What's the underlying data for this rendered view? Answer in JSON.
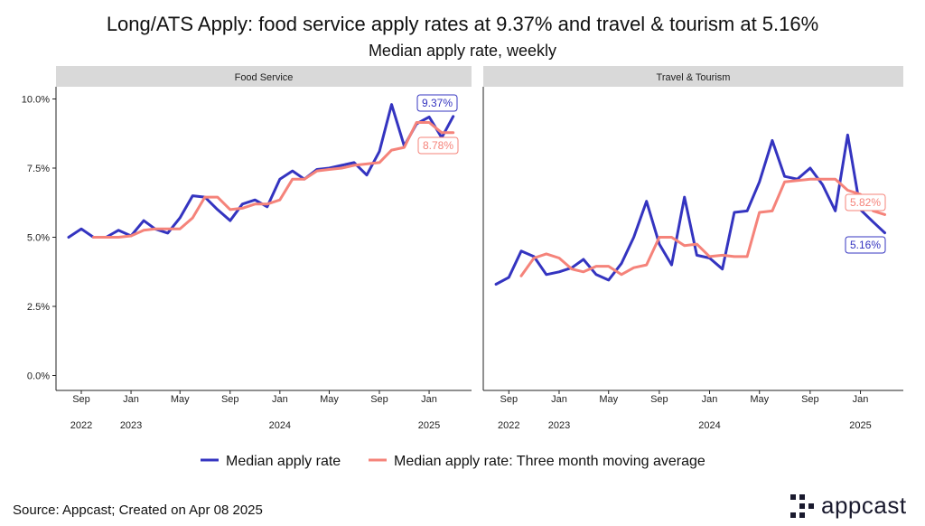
{
  "title": "Long/ATS Apply: food service apply rates at 9.37% and travel & tourism at 5.16%",
  "subtitle": "Median apply rate, weekly",
  "source": "Source: Appcast; Created on Apr 08 2025",
  "logo_text": "appcast",
  "colors": {
    "raw": "#3434c0",
    "ma": "#f5837a",
    "strip": "#d9d9d9"
  },
  "legend": [
    {
      "label": "Median apply rate",
      "color": "#3434c0"
    },
    {
      "label": "Median apply rate: Three month moving average",
      "color": "#f5837a"
    }
  ],
  "chart_data": [
    {
      "type": "line",
      "panel_title": "Food Service",
      "ylim": [
        0,
        10
      ],
      "yticks": [
        0,
        2.5,
        5,
        7.5,
        10
      ],
      "ytick_labels": [
        "0.0%",
        "2.5%",
        "5.0%",
        "7.5%",
        "10.0%"
      ],
      "xlim": [
        "2022-07-01",
        "2025-04-15"
      ],
      "xticks": [
        {
          "date": "2022-09-01",
          "month": "Sep",
          "year": "2022"
        },
        {
          "date": "2023-01-01",
          "month": "Jan",
          "year": "2023"
        },
        {
          "date": "2023-05-01",
          "month": "May",
          "year": ""
        },
        {
          "date": "2023-09-01",
          "month": "Sep",
          "year": ""
        },
        {
          "date": "2024-01-01",
          "month": "Jan",
          "year": "2024"
        },
        {
          "date": "2024-05-01",
          "month": "May",
          "year": ""
        },
        {
          "date": "2024-09-01",
          "month": "Sep",
          "year": ""
        },
        {
          "date": "2025-01-01",
          "month": "Jan",
          "year": "2025"
        }
      ],
      "series": [
        {
          "name": "Median apply rate",
          "x": [
            "2022-08-01",
            "2022-09-01",
            "2022-10-01",
            "2022-11-01",
            "2022-12-01",
            "2023-01-01",
            "2023-02-01",
            "2023-03-01",
            "2023-04-01",
            "2023-05-01",
            "2023-06-01",
            "2023-07-01",
            "2023-08-01",
            "2023-09-01",
            "2023-10-01",
            "2023-11-01",
            "2023-12-01",
            "2024-01-01",
            "2024-02-01",
            "2024-03-01",
            "2024-04-01",
            "2024-05-01",
            "2024-06-01",
            "2024-07-01",
            "2024-08-01",
            "2024-09-01",
            "2024-10-01",
            "2024-11-01",
            "2024-12-01",
            "2025-01-01",
            "2025-02-01",
            "2025-03-01"
          ],
          "values": [
            5.0,
            5.3,
            5.0,
            5.0,
            5.25,
            5.05,
            5.6,
            5.3,
            5.15,
            5.7,
            6.5,
            6.45,
            6.0,
            5.6,
            6.2,
            6.35,
            6.1,
            7.1,
            7.4,
            7.1,
            7.45,
            7.5,
            7.6,
            7.7,
            7.25,
            8.1,
            9.8,
            8.3,
            9.1,
            9.35,
            8.6,
            9.37
          ]
        },
        {
          "name": "Median apply rate: Three month moving average",
          "x": [
            "2022-10-01",
            "2022-11-01",
            "2022-12-01",
            "2023-01-01",
            "2023-02-01",
            "2023-03-01",
            "2023-04-01",
            "2023-05-01",
            "2023-06-01",
            "2023-07-01",
            "2023-08-01",
            "2023-09-01",
            "2023-10-01",
            "2023-11-01",
            "2023-12-01",
            "2024-01-01",
            "2024-02-01",
            "2024-03-01",
            "2024-04-01",
            "2024-05-01",
            "2024-06-01",
            "2024-07-01",
            "2024-08-01",
            "2024-09-01",
            "2024-10-01",
            "2024-11-01",
            "2024-12-01",
            "2025-01-01",
            "2025-02-01",
            "2025-03-01"
          ],
          "values": [
            5.0,
            5.0,
            5.0,
            5.05,
            5.25,
            5.3,
            5.3,
            5.3,
            5.7,
            6.45,
            6.45,
            6.0,
            6.05,
            6.2,
            6.2,
            6.35,
            7.1,
            7.1,
            7.4,
            7.45,
            7.5,
            7.6,
            7.65,
            7.7,
            8.15,
            8.25,
            9.15,
            9.15,
            8.78,
            8.78
          ]
        }
      ],
      "annotations": [
        {
          "text": "9.37%",
          "series": 0
        },
        {
          "text": "8.78%",
          "series": 1
        }
      ]
    },
    {
      "type": "line",
      "panel_title": "Travel & Tourism",
      "ylim": [
        0,
        10
      ],
      "xlim": [
        "2022-07-01",
        "2025-04-15"
      ],
      "xticks": [
        {
          "date": "2022-09-01",
          "month": "Sep",
          "year": "2022"
        },
        {
          "date": "2023-01-01",
          "month": "Jan",
          "year": "2023"
        },
        {
          "date": "2023-05-01",
          "month": "May",
          "year": ""
        },
        {
          "date": "2023-09-01",
          "month": "Sep",
          "year": ""
        },
        {
          "date": "2024-01-01",
          "month": "Jan",
          "year": "2024"
        },
        {
          "date": "2024-05-01",
          "month": "May",
          "year": ""
        },
        {
          "date": "2024-09-01",
          "month": "Sep",
          "year": ""
        },
        {
          "date": "2025-01-01",
          "month": "Jan",
          "year": "2025"
        }
      ],
      "series": [
        {
          "name": "Median apply rate",
          "x": [
            "2022-08-01",
            "2022-09-01",
            "2022-10-01",
            "2022-11-01",
            "2022-12-01",
            "2023-01-01",
            "2023-02-01",
            "2023-03-01",
            "2023-04-01",
            "2023-05-01",
            "2023-06-01",
            "2023-07-01",
            "2023-08-01",
            "2023-09-01",
            "2023-10-01",
            "2023-11-01",
            "2023-12-01",
            "2024-01-01",
            "2024-02-01",
            "2024-03-01",
            "2024-04-01",
            "2024-05-01",
            "2024-06-01",
            "2024-07-01",
            "2024-08-01",
            "2024-09-01",
            "2024-10-01",
            "2024-11-01",
            "2024-12-01",
            "2025-01-01",
            "2025-02-01",
            "2025-03-01"
          ],
          "values": [
            3.3,
            3.55,
            4.5,
            4.3,
            3.65,
            3.75,
            3.9,
            4.2,
            3.65,
            3.45,
            4.05,
            5.0,
            6.3,
            4.75,
            4.0,
            6.45,
            4.35,
            4.25,
            3.85,
            5.9,
            5.95,
            7.0,
            8.5,
            7.2,
            7.1,
            7.5,
            6.9,
            5.95,
            8.7,
            6.0,
            5.55,
            5.16
          ]
        },
        {
          "name": "Median apply rate: Three month moving average",
          "x": [
            "2022-10-01",
            "2022-11-01",
            "2022-12-01",
            "2023-01-01",
            "2023-02-01",
            "2023-03-01",
            "2023-04-01",
            "2023-05-01",
            "2023-06-01",
            "2023-07-01",
            "2023-08-01",
            "2023-09-01",
            "2023-10-01",
            "2023-11-01",
            "2023-12-01",
            "2024-01-01",
            "2024-02-01",
            "2024-03-01",
            "2024-04-01",
            "2024-05-01",
            "2024-06-01",
            "2024-07-01",
            "2024-08-01",
            "2024-09-01",
            "2024-10-01",
            "2024-11-01",
            "2024-12-01",
            "2025-01-01",
            "2025-02-01",
            "2025-03-01"
          ],
          "values": [
            3.6,
            4.25,
            4.4,
            4.25,
            3.85,
            3.75,
            3.95,
            3.95,
            3.65,
            3.9,
            4.0,
            5.0,
            5.0,
            4.7,
            4.75,
            4.3,
            4.35,
            4.3,
            4.3,
            5.9,
            5.95,
            7.0,
            7.05,
            7.1,
            7.1,
            7.1,
            6.7,
            6.55,
            5.95,
            5.82
          ]
        }
      ],
      "annotations": [
        {
          "text": "5.82%",
          "series": 1
        },
        {
          "text": "5.16%",
          "series": 0
        }
      ]
    }
  ]
}
